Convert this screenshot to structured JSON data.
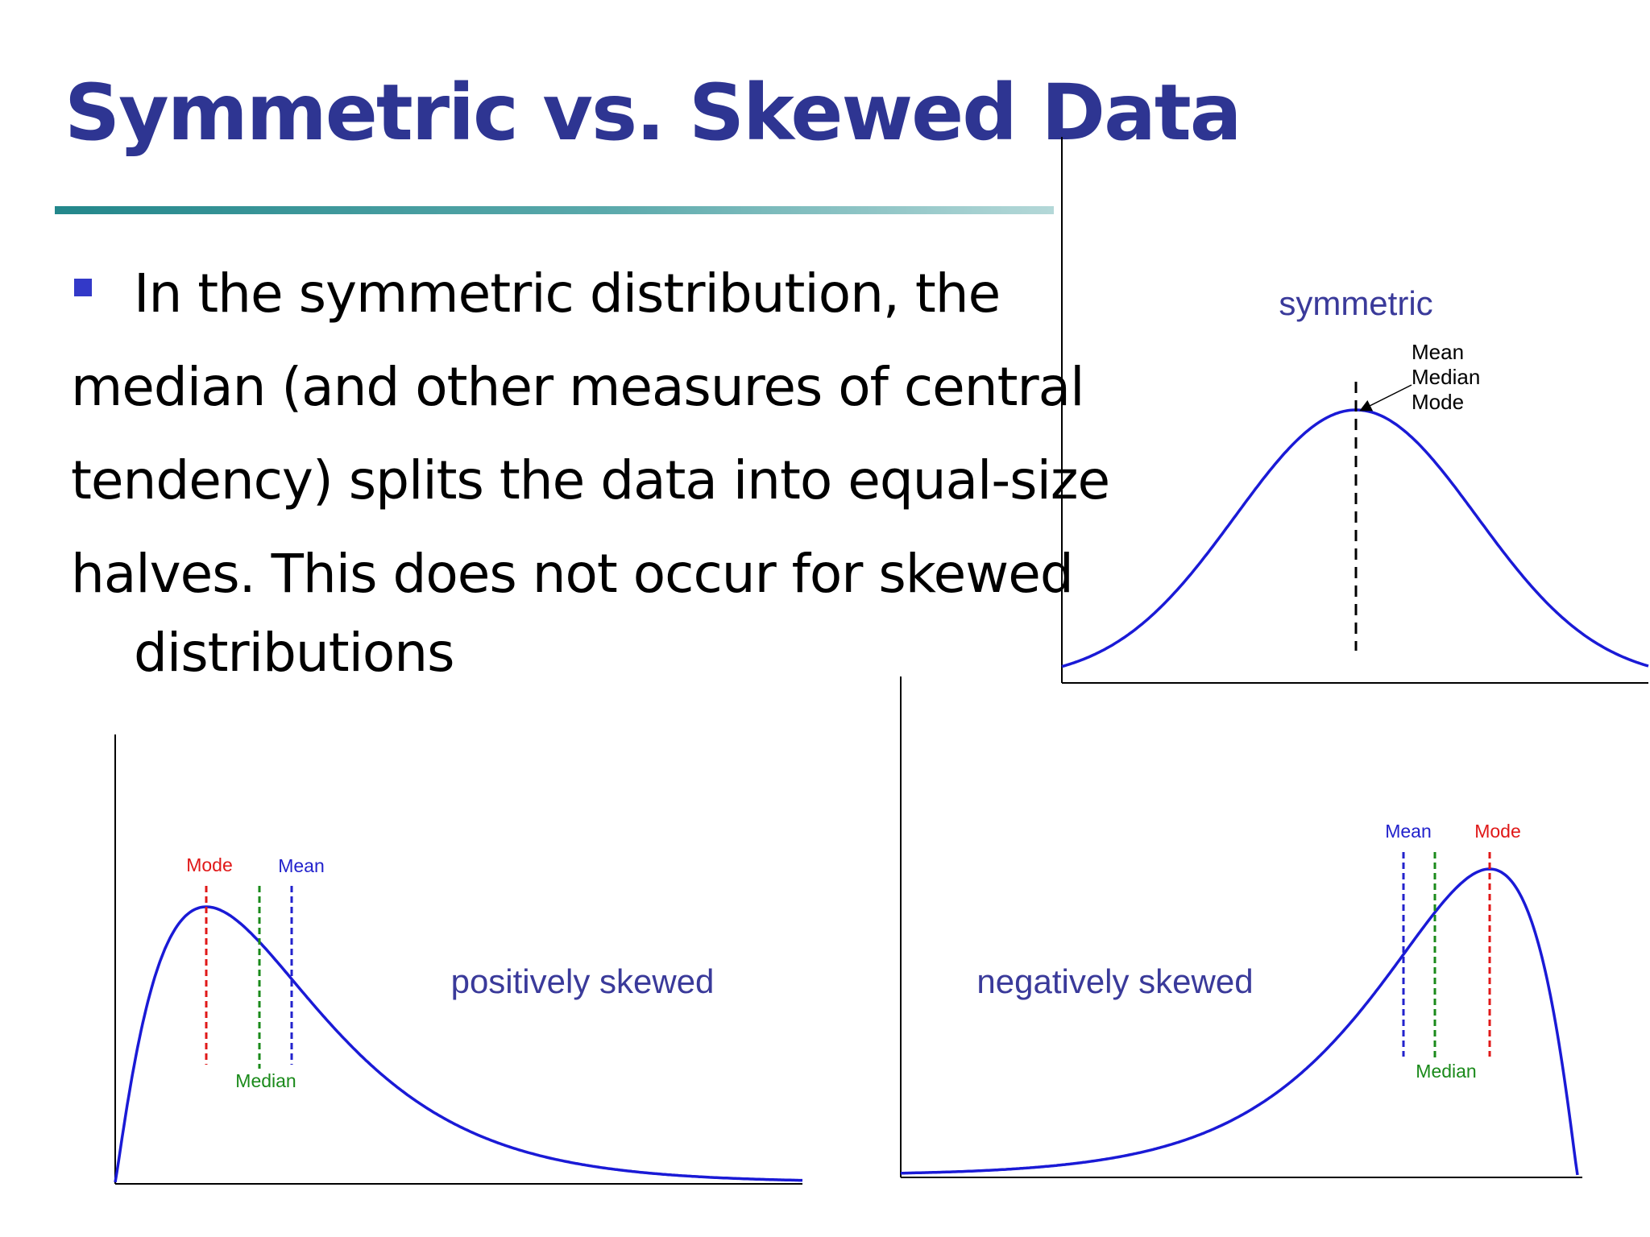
{
  "slide": {
    "title": "Symmetric vs. Skewed Data",
    "bullet_lines": [
      "In the symmetric distribution, the",
      "median (and other measures of central",
      "tendency) splits the data into equal-size",
      "halves. This does not occur for skewed",
      "distributions"
    ]
  },
  "colors": {
    "title": "#2e3592",
    "curve": "#1a1ad6",
    "mode": "#e01818",
    "median": "#1a8a1a",
    "mean": "#2222cc",
    "caption": "#3a3a9a"
  },
  "symmetric": {
    "caption": "symmetric",
    "labels": [
      "Mean",
      "Median",
      "Mode"
    ]
  },
  "positively_skewed": {
    "caption": "positively skewed",
    "mode_label": "Mode",
    "mean_label": "Mean",
    "median_label": "Median"
  },
  "negatively_skewed": {
    "caption": "negatively skewed",
    "mean_label": "Mean",
    "mode_label": "Mode",
    "median_label": "Median"
  }
}
